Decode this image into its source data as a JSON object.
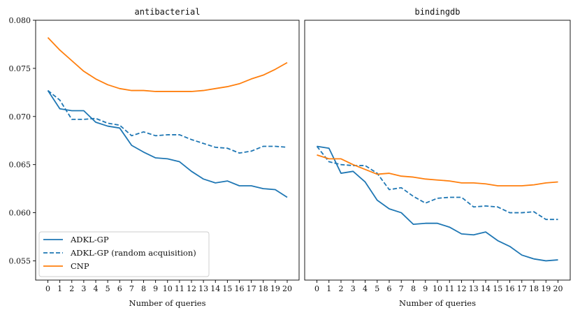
{
  "chart_data": {
    "type": "line",
    "x": [
      0,
      1,
      2,
      3,
      4,
      5,
      6,
      7,
      8,
      9,
      10,
      11,
      12,
      13,
      14,
      15,
      16,
      17,
      18,
      19,
      20
    ],
    "xlabel": "Number of queries",
    "ylim": [
      0.053,
      0.08
    ],
    "yticks": [
      0.055,
      0.06,
      0.065,
      0.07,
      0.075,
      0.08
    ],
    "ytick_labels": [
      "0.055",
      "0.060",
      "0.065",
      "0.070",
      "0.075",
      "0.080"
    ],
    "legend_position": "lower-left",
    "legend": [
      {
        "name": "ADKL-GP",
        "color": "#1f77b4",
        "dash": "solid"
      },
      {
        "name": "ADKL-GP (random acquisition)",
        "color": "#1f77b4",
        "dash": "dashed"
      },
      {
        "name": "CNP",
        "color": "#ff7f0e",
        "dash": "solid"
      }
    ],
    "panels": [
      {
        "title": "antibacterial",
        "series": [
          {
            "name": "ADKL-GP",
            "values": [
              0.0727,
              0.0708,
              0.0706,
              0.0706,
              0.0694,
              0.069,
              0.0688,
              0.067,
              0.0663,
              0.0657,
              0.0656,
              0.0653,
              0.0643,
              0.0635,
              0.0631,
              0.0633,
              0.0628,
              0.0628,
              0.0625,
              0.0624,
              0.0616
            ]
          },
          {
            "name": "ADKL-GP (random acquisition)",
            "values": [
              0.0727,
              0.0717,
              0.0697,
              0.0697,
              0.0698,
              0.0693,
              0.0691,
              0.068,
              0.0684,
              0.068,
              0.0681,
              0.0681,
              0.0676,
              0.0672,
              0.0668,
              0.0667,
              0.0662,
              0.0664,
              0.0669,
              0.0669,
              0.0668
            ]
          },
          {
            "name": "CNP",
            "values": [
              0.0782,
              0.0769,
              0.0758,
              0.0747,
              0.0739,
              0.0733,
              0.0729,
              0.0727,
              0.0727,
              0.0726,
              0.0726,
              0.0726,
              0.0726,
              0.0727,
              0.0729,
              0.0731,
              0.0734,
              0.0739,
              0.0743,
              0.0749,
              0.0756
            ]
          }
        ]
      },
      {
        "title": "bindingdb",
        "series": [
          {
            "name": "ADKL-GP",
            "values": [
              0.0669,
              0.0667,
              0.0641,
              0.0643,
              0.0632,
              0.0613,
              0.0604,
              0.06,
              0.0588,
              0.0589,
              0.0589,
              0.0585,
              0.0578,
              0.0577,
              0.058,
              0.0571,
              0.0565,
              0.0556,
              0.0552,
              0.055,
              0.0551
            ]
          },
          {
            "name": "ADKL-GP (random acquisition)",
            "values": [
              0.0669,
              0.0653,
              0.065,
              0.0649,
              0.0649,
              0.0641,
              0.0624,
              0.0626,
              0.0617,
              0.061,
              0.0615,
              0.0616,
              0.0616,
              0.0606,
              0.0607,
              0.0606,
              0.06,
              0.06,
              0.0601,
              0.0593,
              0.0593
            ]
          },
          {
            "name": "CNP",
            "values": [
              0.066,
              0.0656,
              0.0656,
              0.065,
              0.0645,
              0.064,
              0.0641,
              0.0638,
              0.0637,
              0.0635,
              0.0634,
              0.0633,
              0.0631,
              0.0631,
              0.063,
              0.0628,
              0.0628,
              0.0628,
              0.0629,
              0.0631,
              0.0632
            ]
          }
        ]
      }
    ]
  }
}
